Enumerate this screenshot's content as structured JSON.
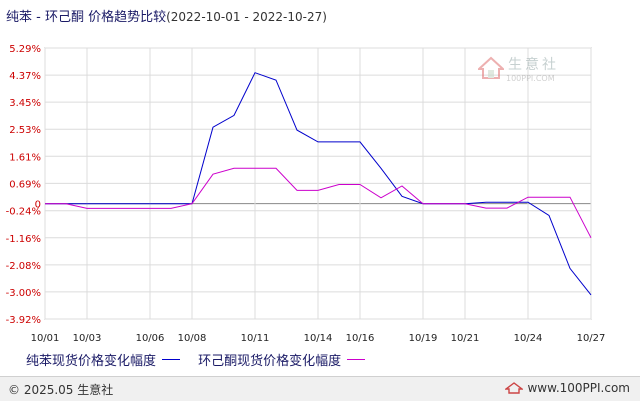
{
  "header": {
    "title": "纯苯 - 环己酮 价格趋势比较",
    "range": "(2022-10-01 - 2022-10-27)"
  },
  "watermark": {
    "name": "生意社",
    "url": "100PPI.COM"
  },
  "footer": {
    "copyright": "© 2025.05 生意社",
    "site": "www.100PPI.com"
  },
  "legend": [
    {
      "label": "纯苯现货价格变化幅度",
      "color": "#0000cc"
    },
    {
      "label": "环己酮现货价格变化幅度",
      "color": "#cc00cc"
    }
  ],
  "chart_data": {
    "type": "line",
    "title": "纯苯 - 环己酮 价格趋势比较",
    "y_tick_labels": [
      "5.29%",
      "4.37%",
      "3.45%",
      "2.53%",
      "1.61%",
      "0.69%",
      "0",
      "-0.24%",
      "-1.16%",
      "-2.08%",
      "-3.00%",
      "-3.92%"
    ],
    "y_ticks": [
      5.29,
      4.37,
      3.45,
      2.53,
      1.61,
      0.69,
      0,
      -0.24,
      -1.16,
      -2.08,
      -3.0,
      -3.92
    ],
    "ylim": [
      -3.92,
      5.29
    ],
    "x_tick_labels": [
      "10/01",
      "10/03",
      "10/06",
      "10/08",
      "10/11",
      "10/14",
      "10/16",
      "10/19",
      "10/21",
      "10/24",
      "10/27"
    ],
    "x": [
      "10/01",
      "10/02",
      "10/03",
      "10/04",
      "10/05",
      "10/06",
      "10/07",
      "10/08",
      "10/09",
      "10/10",
      "10/11",
      "10/12",
      "10/13",
      "10/14",
      "10/15",
      "10/16",
      "10/17",
      "10/18",
      "10/19",
      "10/20",
      "10/21",
      "10/22",
      "10/23",
      "10/24",
      "10/25",
      "10/26",
      "10/27"
    ],
    "grid": true,
    "series": [
      {
        "name": "纯苯现货价格变化幅度",
        "color": "#0000cc",
        "values": [
          0,
          0,
          0,
          0,
          0,
          0,
          0,
          0,
          2.6,
          3.0,
          4.45,
          4.2,
          2.5,
          2.1,
          2.1,
          2.1,
          1.2,
          0.25,
          0,
          0,
          0,
          0.05,
          0.05,
          0.05,
          -0.4,
          -2.2,
          -3.1
        ]
      },
      {
        "name": "环己酮现货价格变化幅度",
        "color": "#cc00cc",
        "values": [
          0,
          0,
          -0.16,
          -0.16,
          -0.16,
          -0.16,
          -0.16,
          0,
          1.0,
          1.2,
          1.2,
          1.2,
          0.45,
          0.45,
          0.65,
          0.65,
          0.2,
          0.6,
          0,
          0,
          0,
          -0.15,
          -0.15,
          0.22,
          0.22,
          0.22,
          -1.16
        ]
      }
    ]
  }
}
